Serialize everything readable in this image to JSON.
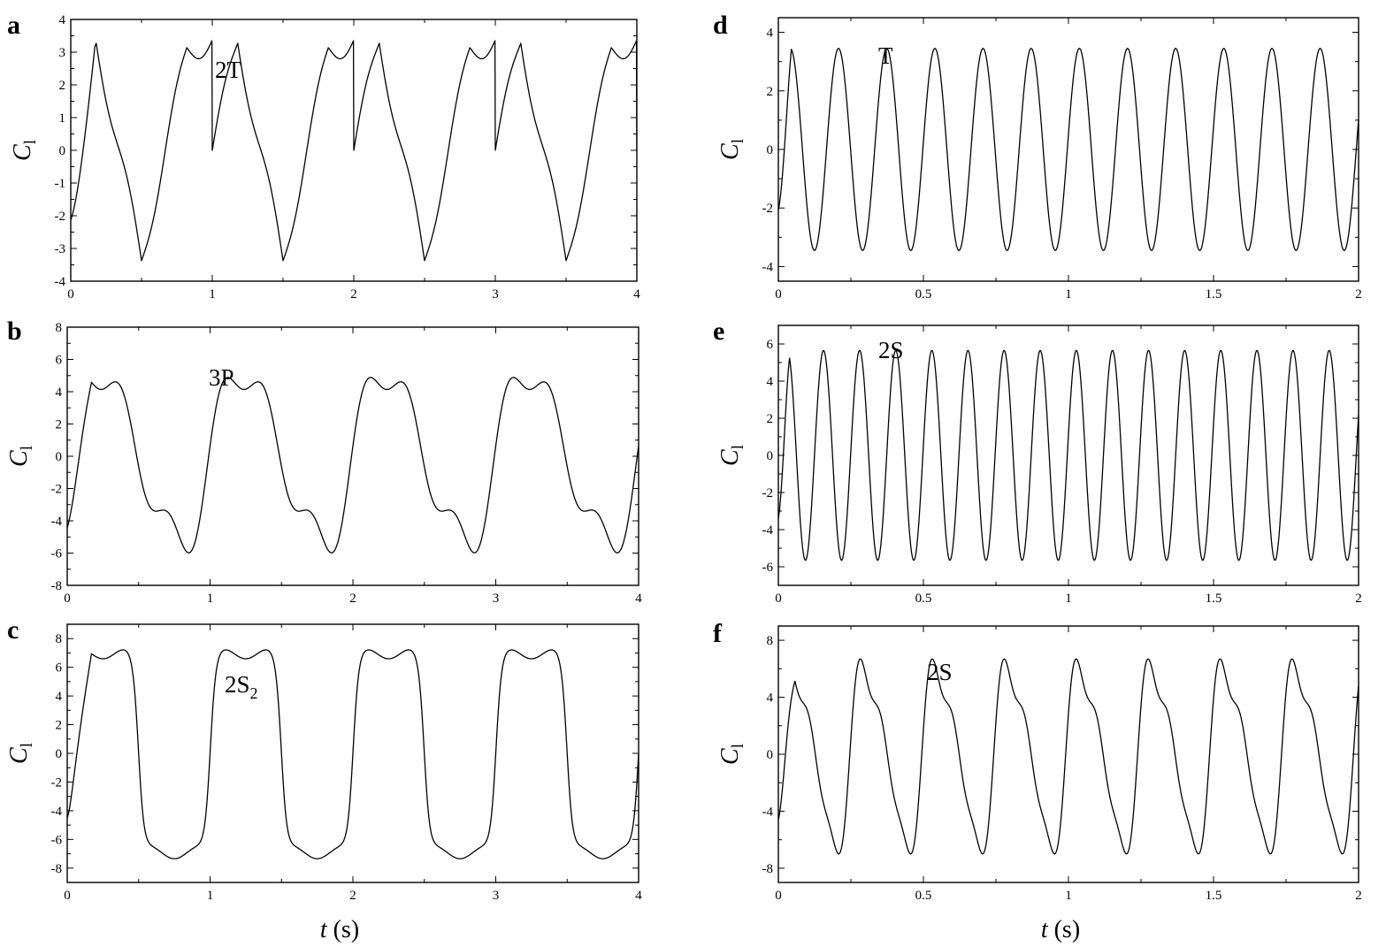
{
  "x_axis_label": {
    "italic": "t",
    "rest": " (s)"
  },
  "y_axis_label": {
    "main": "C",
    "sub": "l"
  },
  "chart_data": [
    {
      "type": "line",
      "panel": "a",
      "annotation": "2T",
      "annotation_sub": "",
      "xlim": [
        0,
        4
      ],
      "ylim": [
        -4,
        4
      ],
      "xticks": [
        0,
        1,
        2,
        3,
        4
      ],
      "xtick_labels": [
        "0",
        "1",
        "2",
        "3",
        "4"
      ],
      "yticks": [
        -4,
        -3,
        -2,
        -1,
        0,
        1,
        2,
        3,
        4
      ],
      "ytick_labels": [
        "-4",
        "-3",
        "-2",
        "-1",
        "0",
        "1",
        "2",
        "3",
        "4"
      ],
      "period": 1.0,
      "amplitude": 3.55,
      "waveform": "2T"
    },
    {
      "type": "line",
      "panel": "b",
      "annotation": "3P",
      "annotation_sub": "",
      "xlim": [
        0,
        4
      ],
      "ylim": [
        -8,
        8
      ],
      "xticks": [
        0,
        1,
        2,
        3,
        4
      ],
      "xtick_labels": [
        "0",
        "1",
        "2",
        "3",
        "4"
      ],
      "yticks": [
        -8,
        -6,
        -4,
        -2,
        0,
        2,
        4,
        6,
        8
      ],
      "ytick_labels": [
        "-8",
        "-6",
        "-4",
        "-2",
        "0",
        "2",
        "4",
        "6",
        "8"
      ],
      "period": 1.0,
      "amplitude": 7.4,
      "waveform": "3P"
    },
    {
      "type": "line",
      "panel": "c",
      "annotation": "2S",
      "annotation_sub": "2",
      "xlim": [
        0,
        4
      ],
      "ylim": [
        -9,
        9
      ],
      "xticks": [
        0,
        1,
        2,
        3,
        4
      ],
      "xtick_labels": [
        "0",
        "1",
        "2",
        "3",
        "4"
      ],
      "yticks": [
        -8,
        -6,
        -4,
        -2,
        0,
        2,
        4,
        6,
        8
      ],
      "ytick_labels": [
        "-8",
        "-6",
        "-4",
        "-2",
        "0",
        "2",
        "4",
        "6",
        "8"
      ],
      "period": 1.0,
      "amplitude": 7.5,
      "waveform": "2S2"
    },
    {
      "type": "line",
      "panel": "d",
      "annotation": "T",
      "annotation_sub": "",
      "xlim": [
        0,
        2
      ],
      "ylim": [
        -4.5,
        4.5
      ],
      "xticks": [
        0,
        0.5,
        1,
        1.5,
        2
      ],
      "xtick_labels": [
        "0",
        "0.5",
        "1",
        "1.5",
        "2"
      ],
      "yticks": [
        -4,
        -2,
        0,
        2,
        4
      ],
      "ytick_labels": [
        "-4",
        "-2",
        "0",
        "2",
        "4"
      ],
      "period": 0.166,
      "amplitude": 3.45,
      "waveform": "sine"
    },
    {
      "type": "line",
      "panel": "e",
      "annotation": "2S",
      "annotation_sub": "",
      "xlim": [
        0,
        2
      ],
      "ylim": [
        -7,
        7
      ],
      "xticks": [
        0,
        0.5,
        1,
        1.5,
        2
      ],
      "xtick_labels": [
        "0",
        "0.5",
        "1",
        "1.5",
        "2"
      ],
      "yticks": [
        -6,
        -4,
        -2,
        0,
        2,
        4,
        6
      ],
      "ytick_labels": [
        "-6",
        "-4",
        "-2",
        "0",
        "2",
        "4",
        "6"
      ],
      "period": 0.1245,
      "amplitude": 5.65,
      "waveform": "sine"
    },
    {
      "type": "line",
      "panel": "f",
      "annotation": "2S",
      "annotation_sub": "",
      "xlim": [
        0,
        2
      ],
      "ylim": [
        -9,
        9
      ],
      "xticks": [
        0,
        0.5,
        1,
        1.5,
        2
      ],
      "xtick_labels": [
        "0",
        "0.5",
        "1",
        "1.5",
        "2"
      ],
      "yticks": [
        -8,
        -4,
        0,
        4,
        8
      ],
      "ytick_labels": [
        "-8",
        "-4",
        "0",
        "4",
        "8"
      ],
      "period": 0.248,
      "amplitude": 7.7,
      "waveform": "shoulder"
    }
  ]
}
